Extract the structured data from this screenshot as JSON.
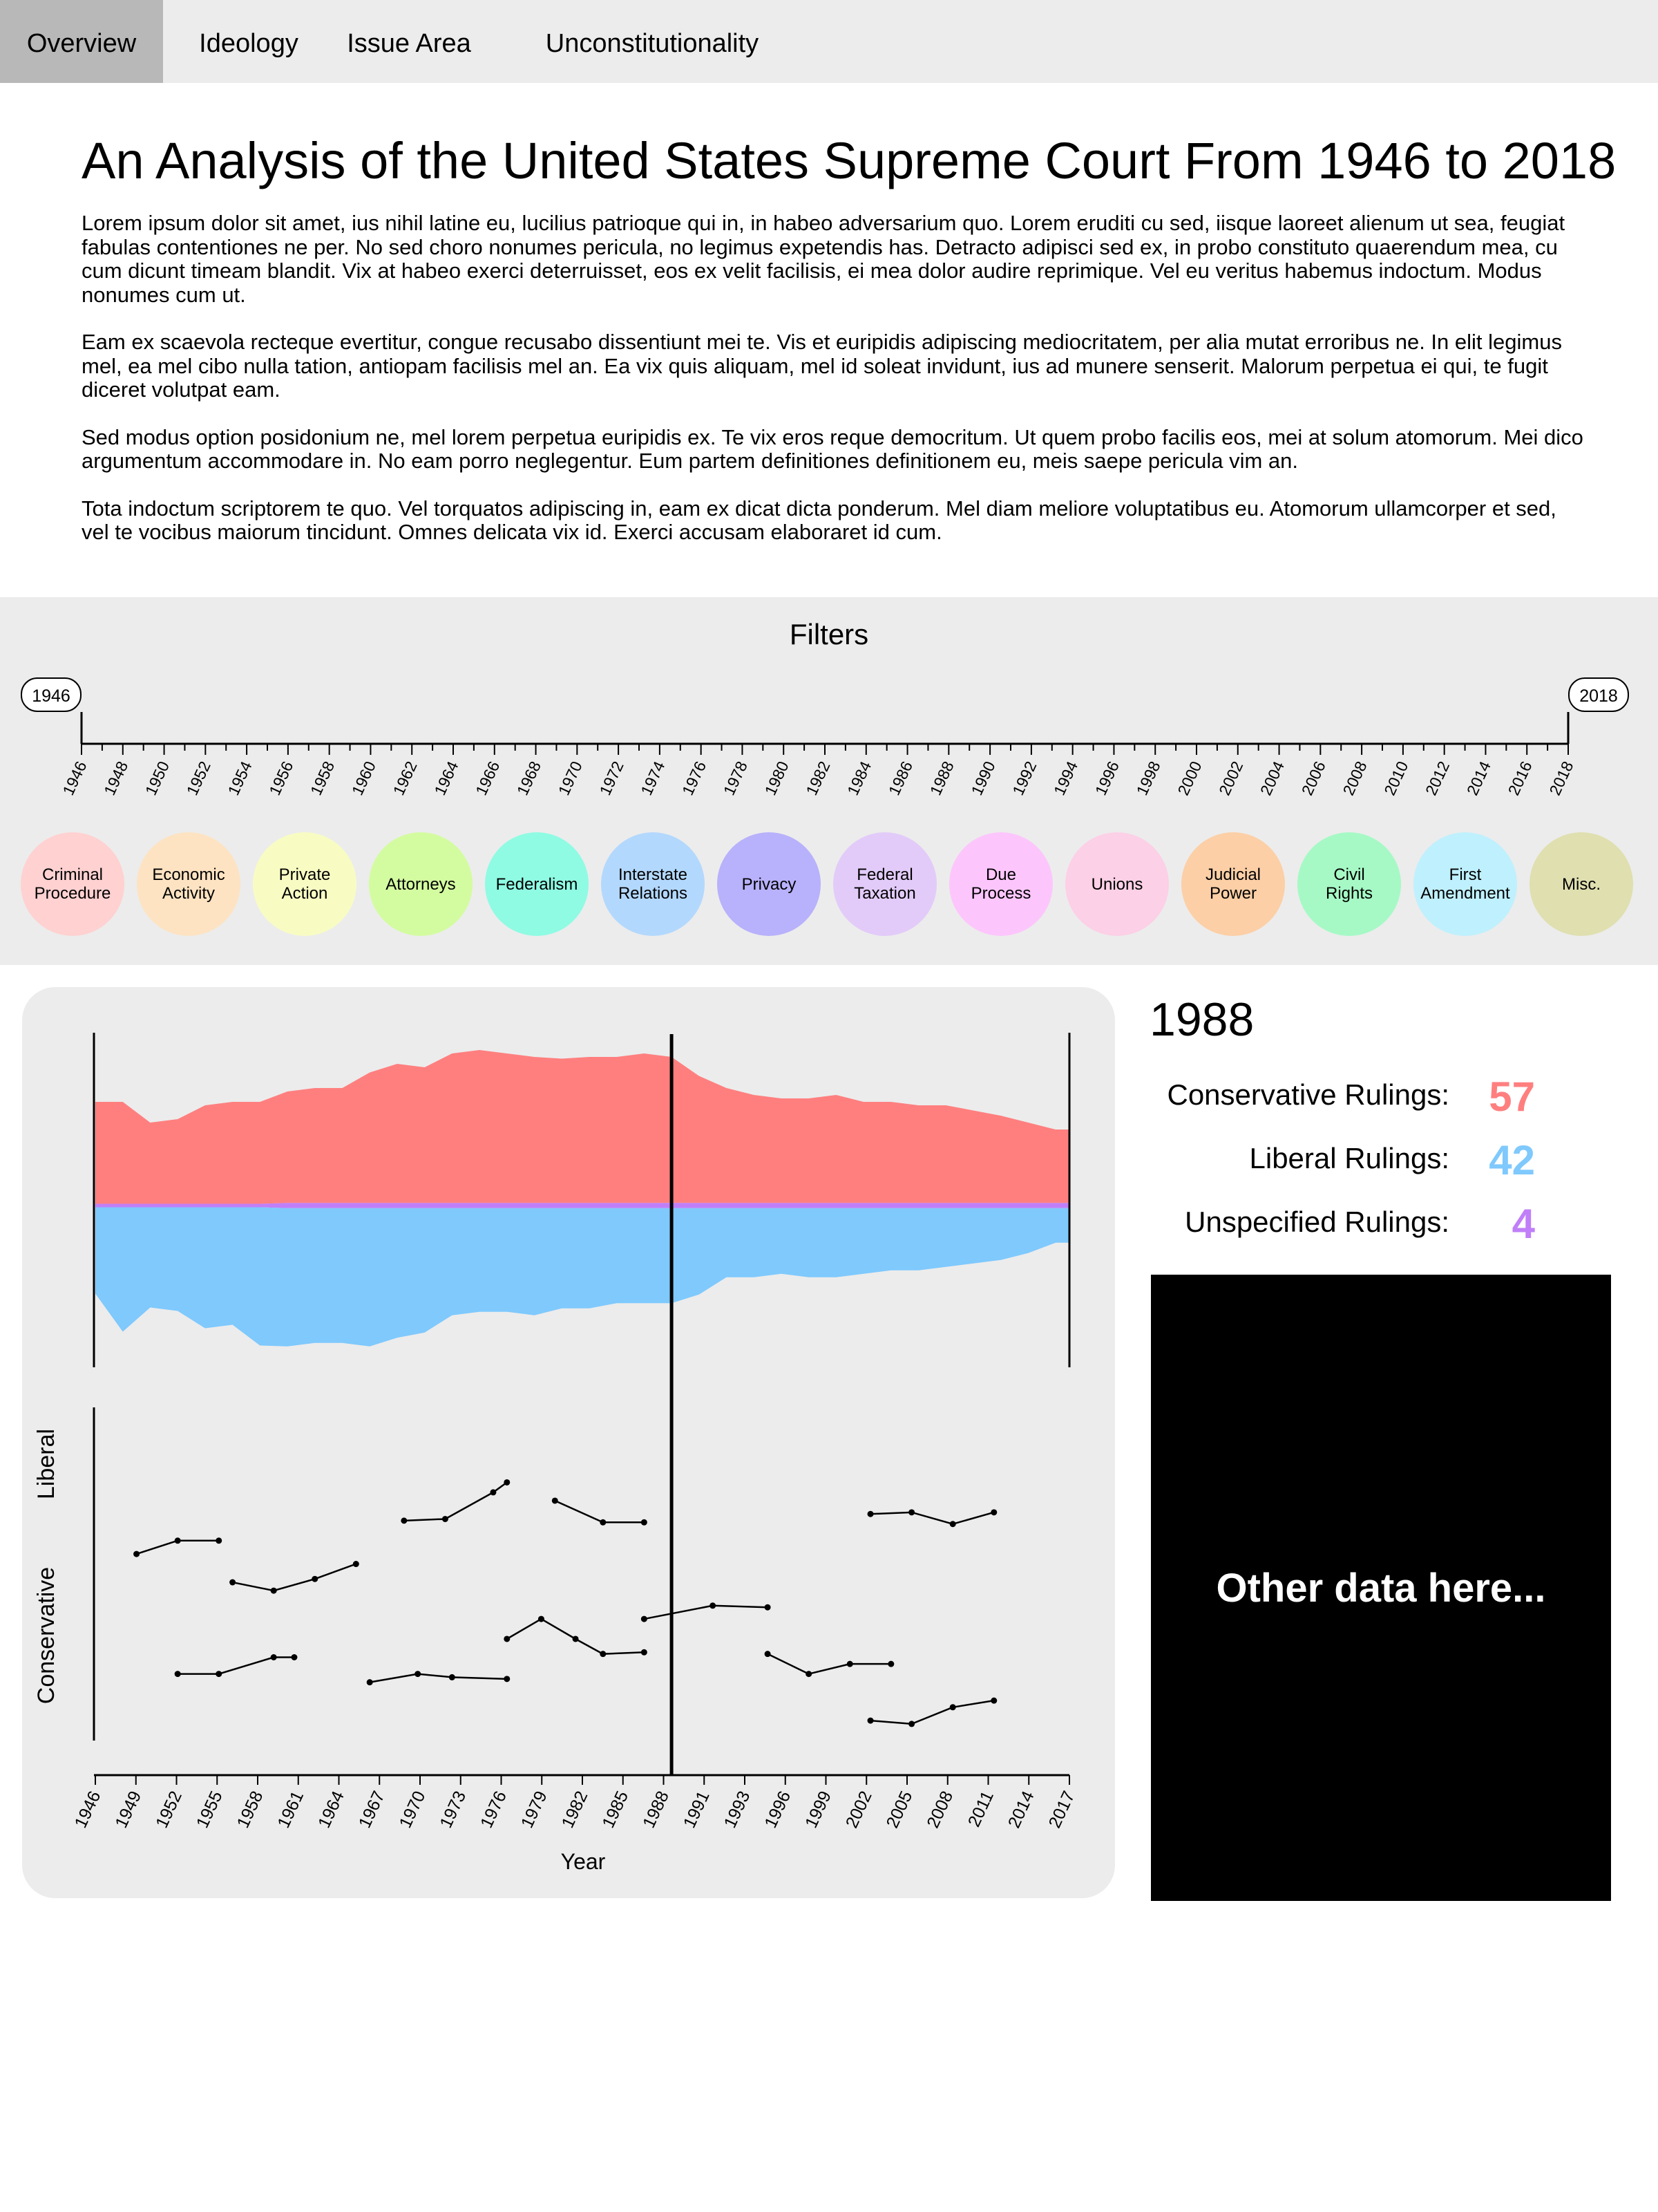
{
  "nav": {
    "tabs": [
      {
        "label": "Overview",
        "active": true
      },
      {
        "label": "Ideology",
        "active": false
      },
      {
        "label": "Issue Area",
        "active": false
      },
      {
        "label": "Unconstitutionality",
        "active": false
      }
    ]
  },
  "title": "An Analysis of the United States Supreme Court From 1946 to 2018",
  "intro": {
    "paragraphs": [
      "Lorem ipsum dolor sit amet, ius nihil latine eu, lucilius patrioque qui in, in habeo adversarium quo. Lorem eruditi cu sed, iisque laoreet alienum ut sea, feugiat fabulas contentiones ne per. No sed choro nonumes pericula, no legimus expetendis has. Detracto adipisci sed ex, in probo constituto quaerendum mea, cu cum dicunt timeam blandit. Vix at habeo exerci deterruisset, eos ex velit facilisis, ei mea dolor audire reprimique. Vel eu veritus habemus indoctum. Modus nonumes cum ut.",
      "Eam ex scaevola recteque evertitur, congue recusabo dissentiunt mei te. Vis et euripidis adipiscing mediocritatem, per alia mutat erroribus ne. In elit legimus mel, ea mel cibo nulla tation, antiopam facilisis mel an. Ea vix quis aliquam, mel id soleat invidunt, ius ad munere senserit. Malorum perpetua ei qui, te fugit diceret volutpat eam.",
      "Sed modus option posidonium ne, mel lorem perpetua euripidis ex. Te vix eros reque democritum. Ut quem probo facilis eos, mei at solum atomorum. Mei dico argumentum accommodare in. No eam porro neglegentur. Eum partem definitiones definitionem eu, meis saepe pericula vim an.",
      "Tota indoctum scriptorem te quo. Vel torquatos adipiscing in, eam ex dicat dicta ponderum. Mel diam meliore voluptatibus eu. Atomorum ullamcorper et sed, vel te vocibus maiorum tincidunt. Omnes delicata vix id. Exerci accusam elaboraret id cum."
    ]
  },
  "filters": {
    "title": "Filters",
    "year_start": "1946",
    "year_end": "2018",
    "timeline_ticks": [
      "1946",
      "1948",
      "1950",
      "1952",
      "1954",
      "1956",
      "1958",
      "1960",
      "1962",
      "1964",
      "1966",
      "1968",
      "1970",
      "1972",
      "1974",
      "1976",
      "1978",
      "1980",
      "1982",
      "1984",
      "1986",
      "1988",
      "1990",
      "1992",
      "1994",
      "1996",
      "1998",
      "2000",
      "2002",
      "2004",
      "2006",
      "2008",
      "2010",
      "2012",
      "2014",
      "2016",
      "2018"
    ],
    "issues": [
      {
        "label": [
          "Criminal",
          "Procedure"
        ],
        "color": "#ffd1d1"
      },
      {
        "label": [
          "Economic",
          "Activity"
        ],
        "color": "#fde3c2"
      },
      {
        "label": [
          "Private",
          "Action"
        ],
        "color": "#f8fcc3"
      },
      {
        "label": [
          "Attorneys"
        ],
        "color": "#d3fca0"
      },
      {
        "label": [
          "Federalism"
        ],
        "color": "#8ffbe3"
      },
      {
        "label": [
          "Interstate",
          "Relations"
        ],
        "color": "#b3d8fd"
      },
      {
        "label": [
          "Privacy"
        ],
        "color": "#b8b1fb"
      },
      {
        "label": [
          "Federal",
          "Taxation"
        ],
        "color": "#e2cbf9"
      },
      {
        "label": [
          "Due",
          "Process"
        ],
        "color": "#fcc6fc"
      },
      {
        "label": [
          "Unions"
        ],
        "color": "#fcd0e6"
      },
      {
        "label": [
          "Judicial",
          "Power"
        ],
        "color": "#fccfa6"
      },
      {
        "label": [
          "Civil",
          "Rights"
        ],
        "color": "#a6f9c5"
      },
      {
        "label": [
          "First",
          "Amendment"
        ],
        "color": "#bff0fd"
      },
      {
        "label": [
          "Misc."
        ],
        "color": "#dfdfb0"
      }
    ]
  },
  "chart_data": [
    {
      "type": "area",
      "title": "",
      "x_range": [
        1946,
        2017
      ],
      "selected_year": 1988,
      "colors": {
        "conservative": "#ff7f7f",
        "unspecified": "#c07ff8",
        "liberal": "#7fc9fd"
      },
      "series": [
        {
          "name": "",
          "x": [
            1946,
            1948,
            1950,
            1952,
            1954,
            1956,
            1958,
            1960,
            1962,
            1964,
            1966,
            1968,
            1970,
            1972,
            1974,
            1976,
            1978,
            1980,
            1982,
            1984,
            1986,
            1988,
            1990,
            1992,
            1994,
            1996,
            1998,
            2000,
            2002,
            2004,
            2006,
            2008,
            2010,
            2012,
            2014,
            2016,
            2017
          ],
          "values": [
            60,
            60,
            48,
            50,
            58,
            60,
            60,
            66,
            68,
            68,
            77,
            82,
            80,
            88,
            90,
            88,
            86,
            85,
            86,
            86,
            88,
            86,
            75,
            68,
            64,
            62,
            62,
            64,
            60,
            60,
            58,
            58,
            55,
            52,
            48,
            44,
            44
          ]
        },
        {
          "name": "",
          "x": [
            1946,
            1948,
            1950,
            1952,
            1954,
            1956,
            1958,
            1960,
            1962,
            1964,
            1966,
            1968,
            1970,
            1972,
            1974,
            1976,
            1978,
            1980,
            1982,
            1984,
            1986,
            1988,
            1990,
            1992,
            1994,
            1996,
            1998,
            2000,
            2002,
            2004,
            2006,
            2008,
            2010,
            2012,
            2014,
            2016,
            2017
          ],
          "values": [
            2,
            2,
            2,
            2,
            2,
            2,
            2,
            3,
            3,
            3,
            3,
            3,
            3,
            3,
            3,
            3,
            3,
            3,
            3,
            3,
            3,
            3,
            3,
            3,
            3,
            3,
            3,
            3,
            3,
            3,
            3,
            3,
            3,
            3,
            3,
            3,
            3
          ]
        },
        {
          "name": "",
          "x": [
            1946,
            1948,
            1950,
            1952,
            1954,
            1956,
            1958,
            1960,
            1962,
            1964,
            1966,
            1968,
            1970,
            1972,
            1974,
            1976,
            1978,
            1980,
            1982,
            1984,
            1986,
            1988,
            1990,
            1992,
            1994,
            1996,
            1998,
            2000,
            2002,
            2004,
            2006,
            2008,
            2010,
            2012,
            2014,
            2016,
            2017
          ],
          "values": [
            50,
            72,
            58,
            60,
            70,
            68,
            80,
            80,
            78,
            78,
            80,
            75,
            72,
            62,
            60,
            60,
            62,
            58,
            58,
            55,
            55,
            55,
            50,
            40,
            40,
            38,
            40,
            40,
            38,
            36,
            36,
            34,
            32,
            30,
            26,
            20,
            20
          ]
        }
      ]
    },
    {
      "type": "line",
      "xlabel": "Year",
      "ylabel_top": "Liberal",
      "ylabel_bottom": "Conservative",
      "ylim": [
        -1,
        1
      ],
      "xticks": [
        "1946",
        "1949",
        "1952",
        "1955",
        "1958",
        "1961",
        "1964",
        "1967",
        "1970",
        "1973",
        "1976",
        "1979",
        "1982",
        "1985",
        "1988",
        "1991",
        "1993",
        "1996",
        "1999",
        "2002",
        "2005",
        "2008",
        "2011",
        "2014",
        "2017"
      ],
      "selected_year": 1988,
      "justices": [
        {
          "x": [
            1949,
            1952,
            1955
          ],
          "y": [
            0.12,
            0.2,
            0.2
          ]
        },
        {
          "x": [
            1956,
            1959,
            1962,
            1965
          ],
          "y": [
            -0.05,
            -0.1,
            -0.03,
            0.06
          ]
        },
        {
          "x": [
            1952,
            1955,
            1959,
            1960.5
          ],
          "y": [
            -0.6,
            -0.6,
            -0.5,
            -0.5
          ]
        },
        {
          "x": [
            1966,
            1969.5,
            1972,
            1976
          ],
          "y": [
            -0.65,
            -0.6,
            -0.62,
            -0.63
          ]
        },
        {
          "x": [
            1968.5,
            1971.5,
            1975,
            1976
          ],
          "y": [
            0.32,
            0.33,
            0.49,
            0.55
          ]
        },
        {
          "x": [
            1979.5,
            1983,
            1986
          ],
          "y": [
            0.44,
            0.31,
            0.31
          ]
        },
        {
          "x": [
            1976,
            1978.5,
            1981,
            1983,
            1986
          ],
          "y": [
            -0.39,
            -0.27,
            -0.39,
            -0.48,
            -0.47
          ]
        },
        {
          "x": [
            1986,
            1991,
            1995
          ],
          "y": [
            -0.27,
            -0.19,
            -0.2
          ]
        },
        {
          "x": [
            1995,
            1998,
            2001,
            2004
          ],
          "y": [
            -0.48,
            -0.6,
            -0.54,
            -0.54
          ]
        },
        {
          "x": [
            2002.5,
            2005.5,
            2008.5,
            2011.5
          ],
          "y": [
            0.36,
            0.37,
            0.3,
            0.37
          ]
        },
        {
          "x": [
            2002.5,
            2005.5,
            2008.5,
            2011.5
          ],
          "y": [
            -0.88,
            -0.9,
            -0.8,
            -0.76
          ]
        }
      ]
    }
  ],
  "details": {
    "year": "1988",
    "conservative_label": "Conservative Rulings:",
    "conservative_value": "57",
    "conservative_color": "#ff7f7f",
    "liberal_label": "Liberal Rulings:",
    "liberal_value": "42",
    "liberal_color": "#7fc9fd",
    "unspecified_label": "Unspecified Rulings:",
    "unspecified_value": "4",
    "unspecified_color": "#c07ff8",
    "other": "Other data here..."
  }
}
